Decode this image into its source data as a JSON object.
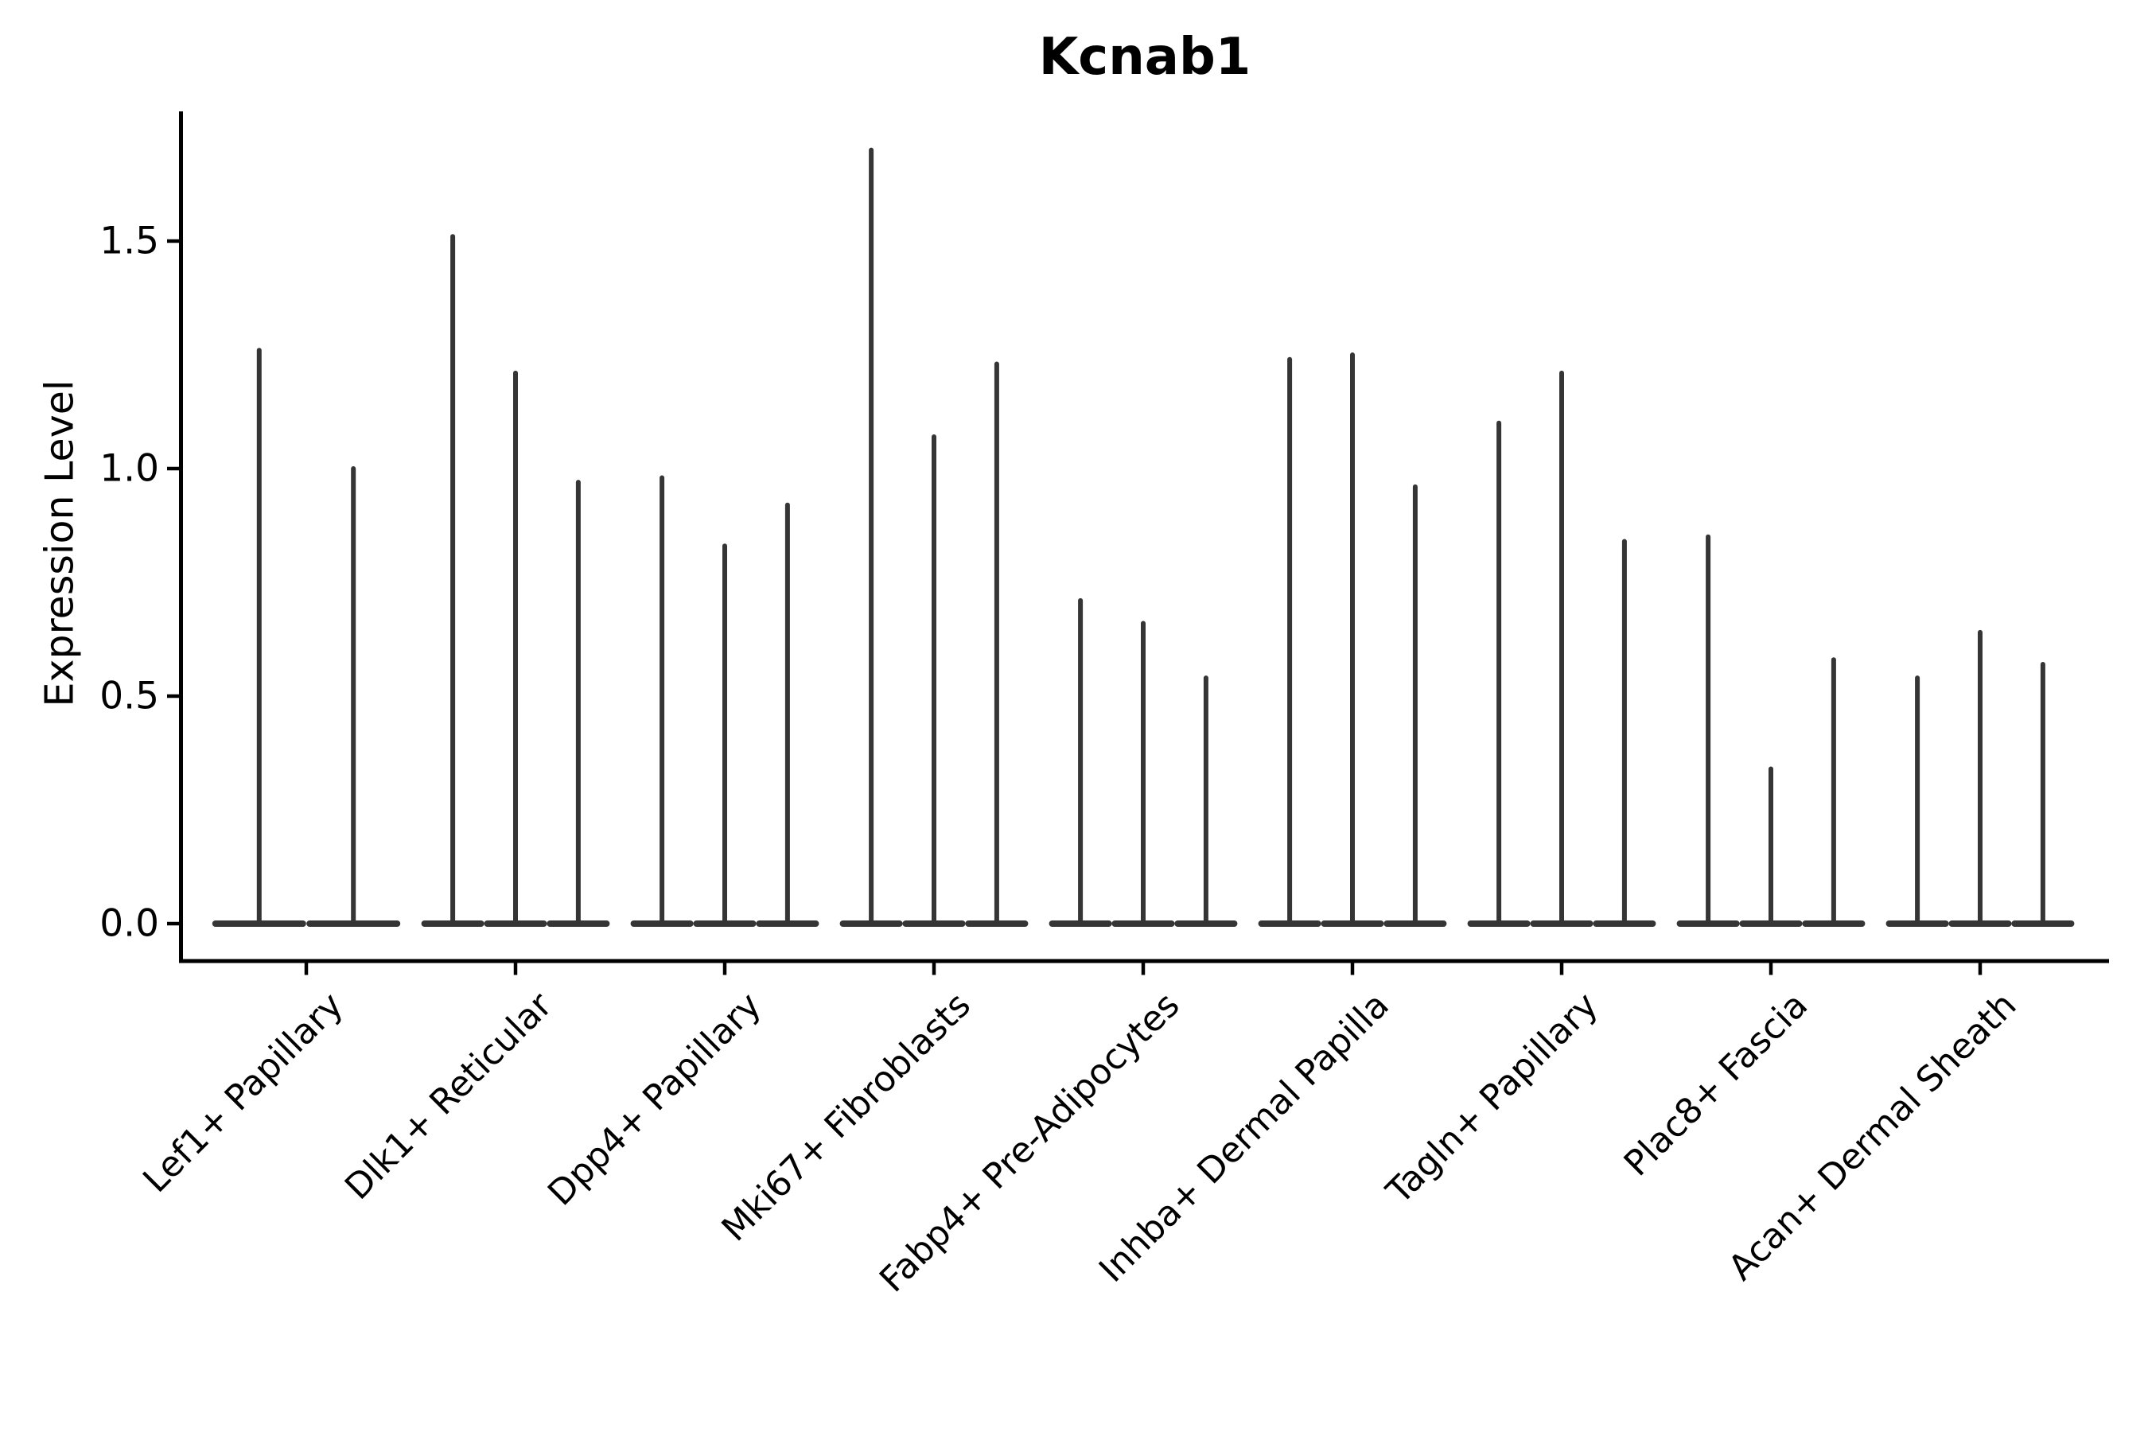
{
  "figure": {
    "title": "Kcnab1"
  },
  "chart_data": {
    "type": "violin",
    "title": "Kcnab1",
    "subtitle": "",
    "xlabel": "",
    "ylabel": "Expression Level",
    "grid": false,
    "legend": "none",
    "ylim": [
      -0.09,
      1.79
    ],
    "ytick_values": [
      0.0,
      0.5,
      1.0,
      1.5
    ],
    "ytick_labels": [
      "0.0",
      "0.5",
      "1.0",
      "1.5"
    ],
    "baseline_value": 0.0,
    "categories": [
      "Lef1+ Papillary",
      "Dlk1+ Reticular",
      "Dpp4+ Papillary",
      "Mki67+ Fibroblasts",
      "Fabp4+ Pre-Adipocytes",
      "Inhba+ Dermal Papilla",
      "Tagln+ Papillary",
      "Plac8+ Fascia",
      "Acan+ Dermal Sheath"
    ],
    "series": [
      {
        "category": "Lef1+ Papillary",
        "violin_maxima": [
          1.26,
          1.0
        ]
      },
      {
        "category": "Dlk1+ Reticular",
        "violin_maxima": [
          1.51,
          1.21,
          0.97
        ]
      },
      {
        "category": "Dpp4+ Papillary",
        "violin_maxima": [
          0.98,
          0.83,
          0.92
        ]
      },
      {
        "category": "Mki67+ Fibroblasts",
        "violin_maxima": [
          1.7,
          1.07,
          1.23
        ]
      },
      {
        "category": "Fabp4+ Pre-Adipocytes",
        "violin_maxima": [
          0.71,
          0.66,
          0.54
        ]
      },
      {
        "category": "Inhba+ Dermal Papilla",
        "violin_maxima": [
          1.24,
          1.25,
          0.96
        ]
      },
      {
        "category": "Tagln+ Papillary",
        "violin_maxima": [
          1.1,
          1.21,
          0.84
        ]
      },
      {
        "category": "Plac8+ Fascia",
        "violin_maxima": [
          0.85,
          0.34,
          0.58
        ]
      },
      {
        "category": "Acan+ Dermal Sheath",
        "violin_maxima": [
          0.54,
          0.64,
          0.57
        ]
      }
    ],
    "violin_color": "#353535",
    "axis_color": "#000000"
  }
}
